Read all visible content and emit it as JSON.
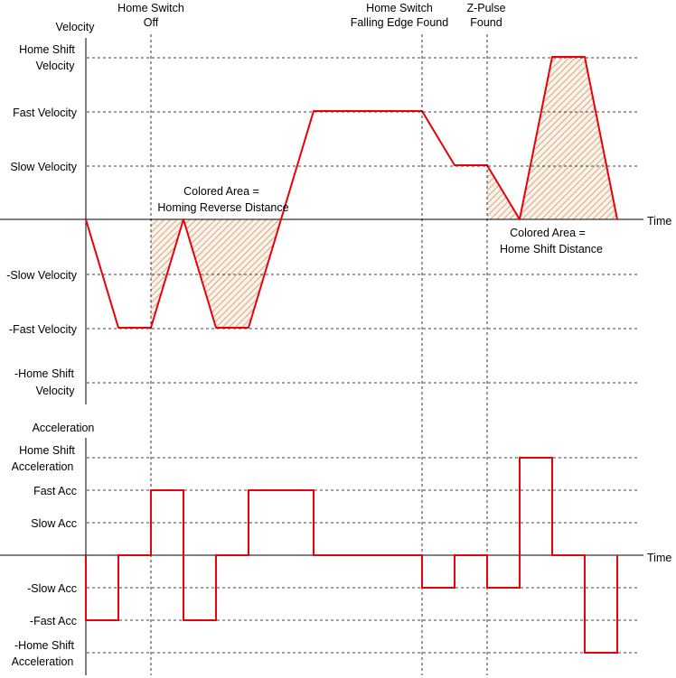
{
  "velocity_chart": {
    "y_axis_title": "Velocity",
    "x_axis_title": "Time",
    "levels": {
      "home_shift_line1": "Home Shift",
      "home_shift_line2": "Velocity",
      "fast": "Fast Velocity",
      "slow": "Slow Velocity",
      "neg_slow": "-Slow Velocity",
      "neg_fast": "-Fast Velocity",
      "neg_home_shift_line1": "-Home Shift",
      "neg_home_shift_line2": "Velocity"
    },
    "events": {
      "home_switch_off_line1": "Home Switch",
      "home_switch_off_line2": "Off",
      "falling_edge_line1": "Home Switch",
      "falling_edge_line2": "Falling Edge Found",
      "zpulse_line1": "Z-Pulse",
      "zpulse_line2": "Found"
    },
    "annotations": {
      "reverse_line1": "Colored Area =",
      "reverse_line2": "Homing Reverse Distance",
      "shift_line1": "Colored Area =",
      "shift_line2": "Home Shift Distance"
    }
  },
  "acceleration_chart": {
    "y_axis_title": "Acceleration",
    "x_axis_title": "Time",
    "levels": {
      "home_shift_line1": "Home Shift",
      "home_shift_line2": "Acceleration",
      "fast": "Fast Acc",
      "slow": "Slow Acc",
      "neg_slow": "-Slow Acc",
      "neg_fast": "-Fast Acc",
      "neg_home_shift_line1": "-Home Shift",
      "neg_home_shift_line2": "Acceleration"
    }
  },
  "colors": {
    "profile": "#e8000b",
    "fill_hatch": "#c8956a",
    "axis": "#000000",
    "guide": "#000000"
  }
}
